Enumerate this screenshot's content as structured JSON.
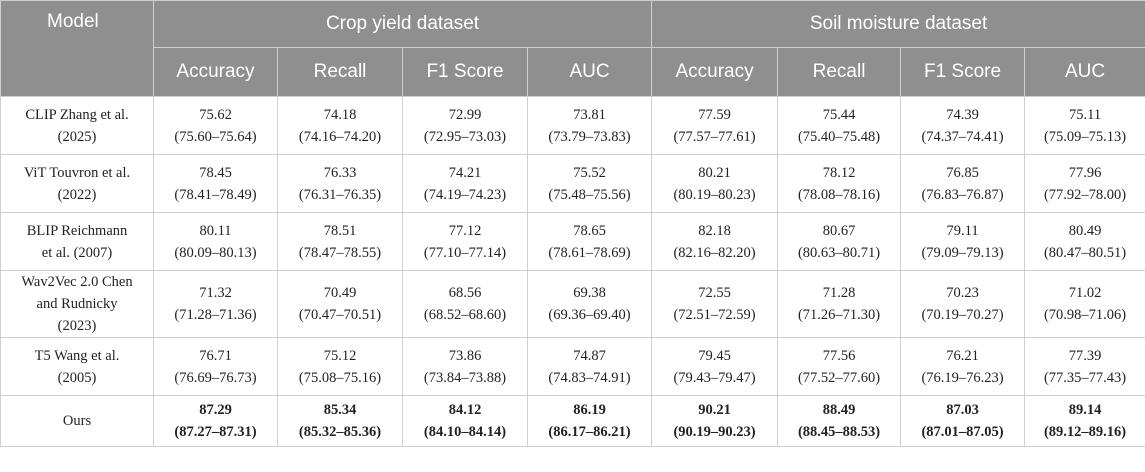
{
  "header": {
    "model_label": "Model",
    "groups": [
      "Crop yield dataset",
      "Soil moisture dataset"
    ],
    "metrics": [
      "Accuracy",
      "Recall",
      "F1 Score",
      "AUC",
      "Accuracy",
      "Recall",
      "F1 Score",
      "AUC"
    ]
  },
  "rows": [
    {
      "model": [
        "CLIP Zhang et al.",
        "(2025)"
      ],
      "cells": [
        [
          "75.62",
          "(75.60–75.64)"
        ],
        [
          "74.18",
          "(74.16–74.20)"
        ],
        [
          "72.99",
          "(72.95–73.03)"
        ],
        [
          "73.81",
          "(73.79–73.83)"
        ],
        [
          "77.59",
          "(77.57–77.61)"
        ],
        [
          "75.44",
          "(75.40–75.48)"
        ],
        [
          "74.39",
          "(74.37–74.41)"
        ],
        [
          "75.11",
          "(75.09–75.13)"
        ]
      ]
    },
    {
      "model": [
        "ViT Touvron et al.",
        "(2022)"
      ],
      "cells": [
        [
          "78.45",
          "(78.41–78.49)"
        ],
        [
          "76.33",
          "(76.31–76.35)"
        ],
        [
          "74.21",
          "(74.19–74.23)"
        ],
        [
          "75.52",
          "(75.48–75.56)"
        ],
        [
          "80.21",
          "(80.19–80.23)"
        ],
        [
          "78.12",
          "(78.08–78.16)"
        ],
        [
          "76.85",
          "(76.83–76.87)"
        ],
        [
          "77.96",
          "(77.92–78.00)"
        ]
      ]
    },
    {
      "model": [
        "BLIP Reichmann",
        "et al. (2007)"
      ],
      "cells": [
        [
          "80.11",
          "(80.09–80.13)"
        ],
        [
          "78.51",
          "(78.47–78.55)"
        ],
        [
          "77.12",
          "(77.10–77.14)"
        ],
        [
          "78.65",
          "(78.61–78.69)"
        ],
        [
          "82.18",
          "(82.16–82.20)"
        ],
        [
          "80.67",
          "(80.63–80.71)"
        ],
        [
          "79.11",
          "(79.09–79.13)"
        ],
        [
          "80.49",
          "(80.47–80.51)"
        ]
      ]
    },
    {
      "model": [
        "Wav2Vec 2.0 Chen",
        "and Rudnicky",
        "(2023)"
      ],
      "cells": [
        [
          "71.32",
          "(71.28–71.36)"
        ],
        [
          "70.49",
          "(70.47–70.51)"
        ],
        [
          "68.56",
          "(68.52–68.60)"
        ],
        [
          "69.38",
          "(69.36–69.40)"
        ],
        [
          "72.55",
          "(72.51–72.59)"
        ],
        [
          "71.28",
          "(71.26–71.30)"
        ],
        [
          "70.23",
          "(70.19–70.27)"
        ],
        [
          "71.02",
          "(70.98–71.06)"
        ]
      ]
    },
    {
      "model": [
        "T5 Wang et al.",
        "(2005)"
      ],
      "cells": [
        [
          "76.71",
          "(76.69–76.73)"
        ],
        [
          "75.12",
          "(75.08–75.16)"
        ],
        [
          "73.86",
          "(73.84–73.88)"
        ],
        [
          "74.87",
          "(74.83–74.91)"
        ],
        [
          "79.45",
          "(79.43–79.47)"
        ],
        [
          "77.56",
          "(77.52–77.60)"
        ],
        [
          "76.21",
          "(76.19–76.23)"
        ],
        [
          "77.39",
          "(77.35–77.43)"
        ]
      ]
    },
    {
      "model": [
        "Ours"
      ],
      "cells": [
        [
          "87.29",
          "(87.27–87.31)"
        ],
        [
          "85.34",
          "(85.32–85.36)"
        ],
        [
          "84.12",
          "(84.10–84.14)"
        ],
        [
          "86.19",
          "(86.17–86.21)"
        ],
        [
          "90.21",
          "(90.19–90.23)"
        ],
        [
          "88.49",
          "(88.45–88.53)"
        ],
        [
          "87.03",
          "(87.01–87.05)"
        ],
        [
          "89.14",
          "(89.12–89.16)"
        ]
      ]
    }
  ]
}
